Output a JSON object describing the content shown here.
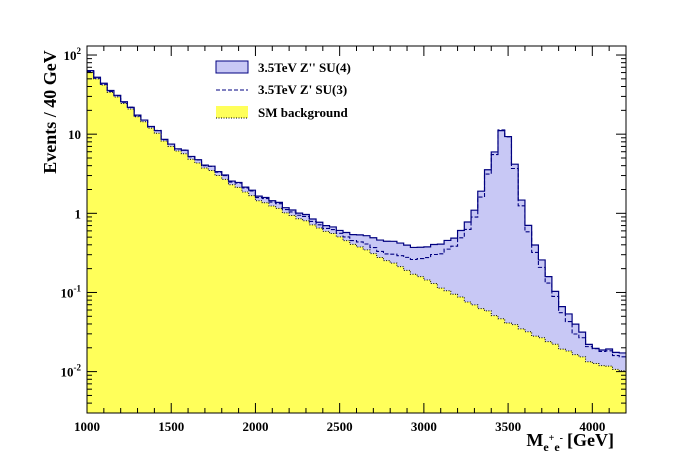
{
  "chart_data": {
    "type": "histogram",
    "title": "",
    "xlabel": {
      "base": "M",
      "sub_base": "e",
      "sup1": "+",
      "sub_mid": "e",
      "sup2": "-",
      "unit": "[GeV]"
    },
    "ylabel": "Events / 40 GeV",
    "xlim": [
      1000,
      4200
    ],
    "ylim": [
      0.003,
      130
    ],
    "yscale": "log",
    "bin_width": 40,
    "x_ticks": [
      1000,
      1500,
      2000,
      2500,
      3000,
      3500,
      4000
    ],
    "x_tick_labels": [
      "1000",
      "1500",
      "2000",
      "2500",
      "3000",
      "3500",
      "4000"
    ],
    "y_ticks": [
      {
        "value": 0.01,
        "base": "10",
        "exp": "-2"
      },
      {
        "value": 0.1,
        "base": "10",
        "exp": "-1"
      },
      {
        "value": 1,
        "base": "1",
        "exp": ""
      },
      {
        "value": 10,
        "base": "10",
        "exp": ""
      },
      {
        "value": 100,
        "base": "10",
        "exp": "2"
      }
    ],
    "legend": [
      {
        "label": "3.5TeV Z'' SU(4)",
        "style": "filled-box",
        "color": "#c8c8f5"
      },
      {
        "label": "3.5TeV Z' SU(3)",
        "style": "dashed-line",
        "color": "#000080"
      },
      {
        "label": "SM background",
        "style": "filled-box-dotted",
        "color": "#ffff5a"
      }
    ],
    "legend_position": "top-center",
    "series": [
      {
        "name": "SM background",
        "color": "#ffff5a",
        "anchors": [
          [
            1000,
            65
          ],
          [
            1500,
            7
          ],
          [
            2000,
            1.55
          ],
          [
            2500,
            0.5
          ],
          [
            3000,
            0.15
          ],
          [
            3500,
            0.042
          ],
          [
            4000,
            0.013
          ],
          [
            4200,
            0.01
          ]
        ]
      },
      {
        "name": "3.5TeV Z'' SU(4)",
        "color": "#c8c8f5",
        "anchors": [
          [
            1000,
            65
          ],
          [
            1500,
            7.5
          ],
          [
            2000,
            1.8
          ],
          [
            2500,
            0.6
          ],
          [
            3000,
            0.36
          ],
          [
            3200,
            0.5
          ],
          [
            3300,
            1.1
          ],
          [
            3400,
            4.5
          ],
          [
            3480,
            15
          ],
          [
            3540,
            4
          ],
          [
            3600,
            0.9
          ],
          [
            3700,
            0.25
          ],
          [
            3800,
            0.08
          ],
          [
            3900,
            0.04
          ],
          [
            4000,
            0.02
          ],
          [
            4200,
            0.017
          ]
        ]
      },
      {
        "name": "3.5TeV Z' SU(3)",
        "color": "#000080",
        "anchors": [
          [
            1000,
            65
          ],
          [
            1500,
            7.5
          ],
          [
            2000,
            1.75
          ],
          [
            2500,
            0.55
          ],
          [
            2800,
            0.3
          ],
          [
            3000,
            0.26
          ],
          [
            3200,
            0.4
          ],
          [
            3300,
            0.9
          ],
          [
            3400,
            4
          ],
          [
            3480,
            16
          ],
          [
            3540,
            3.5
          ],
          [
            3600,
            0.75
          ],
          [
            3700,
            0.2
          ],
          [
            3800,
            0.07
          ],
          [
            3900,
            0.03
          ],
          [
            4000,
            0.02
          ],
          [
            4200,
            0.015
          ]
        ]
      }
    ]
  }
}
